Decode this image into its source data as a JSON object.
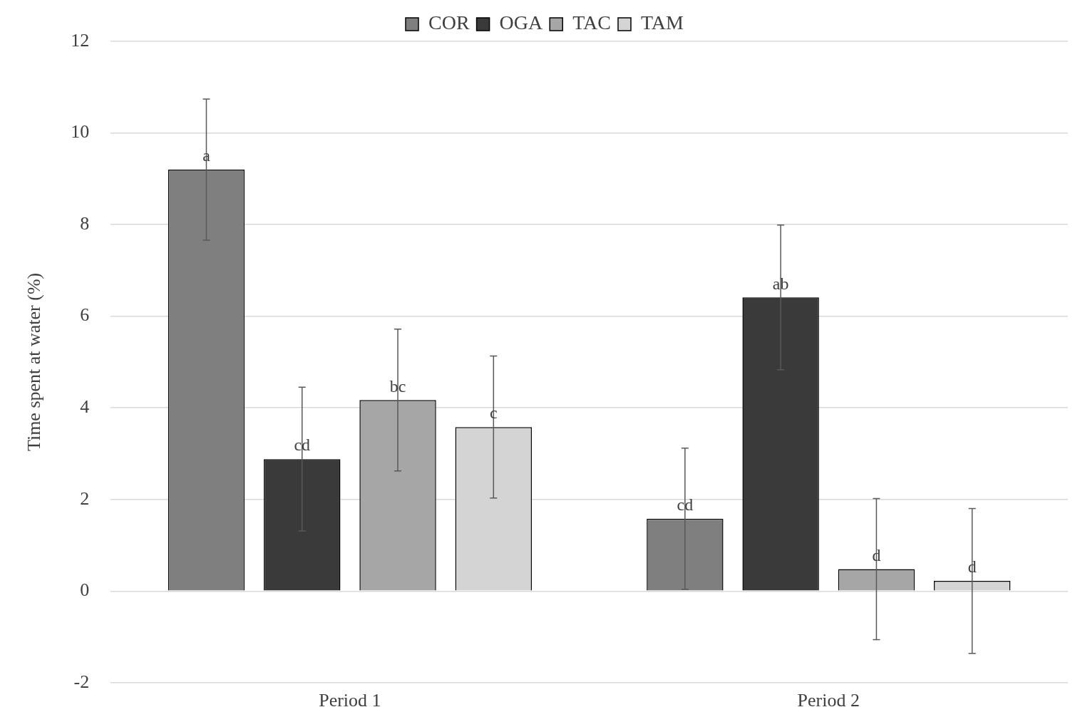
{
  "chart_data": {
    "type": "bar",
    "ylabel": "Time spent at water (%)",
    "categories": [
      "Period 1",
      "Period 2"
    ],
    "series": [
      {
        "name": "COR",
        "color": "#7f7f7f",
        "values": [
          9.2,
          1.58
        ],
        "errors": [
          1.54,
          1.54
        ],
        "value_labels": [
          "a",
          "cd"
        ]
      },
      {
        "name": "OGA",
        "color": "#3a3a3a",
        "values": [
          2.88,
          6.41
        ],
        "errors": [
          1.57,
          1.58
        ],
        "value_labels": [
          "cd",
          "ab"
        ]
      },
      {
        "name": "TAC",
        "color": "#a6a6a6",
        "values": [
          4.17,
          0.48
        ],
        "errors": [
          1.55,
          1.54
        ],
        "value_labels": [
          "bc",
          "d"
        ]
      },
      {
        "name": "TAM",
        "color": "#d4d4d4",
        "values": [
          3.58,
          0.22
        ],
        "errors": [
          1.55,
          1.58
        ],
        "value_labels": [
          "c",
          "d"
        ]
      }
    ],
    "ylim": [
      -2,
      12
    ],
    "yticks": [
      -2,
      0,
      2,
      4,
      6,
      8,
      10,
      12
    ],
    "grid": "y",
    "legend": "top"
  }
}
